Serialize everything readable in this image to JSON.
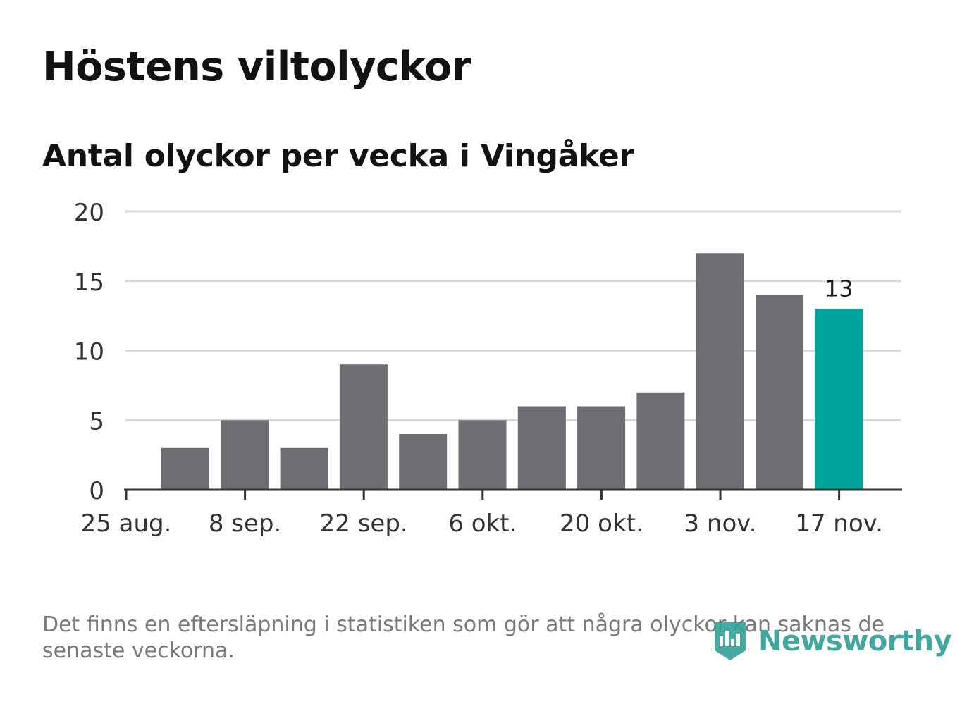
{
  "header": {
    "title": "Höstens viltolyckor",
    "subtitle": "Antal olyckor per vecka i Vingåker"
  },
  "chart_data": {
    "type": "bar",
    "title": "Höstens viltolyckor",
    "subtitle": "Antal olyckor per vecka i Vingåker",
    "xlabel": "",
    "ylabel": "",
    "ylim": [
      0,
      20
    ],
    "yticks": [
      "0",
      "5",
      "10",
      "15",
      "20"
    ],
    "xtick_labels": [
      "25 aug.",
      "8 sep.",
      "22 sep.",
      "6 okt.",
      "20 okt.",
      "3 nov.",
      "17 nov."
    ],
    "values": [
      3,
      5,
      3,
      9,
      4,
      5,
      6,
      6,
      7,
      17,
      14,
      13
    ],
    "highlight_index": 11,
    "highlight_label": "13",
    "grid": true,
    "colors": {
      "bar": "#6e6d72",
      "highlight": "#00a49a",
      "grid": "#d9d9d9",
      "axis": "#333333"
    }
  },
  "footer": {
    "note": "Det finns en eftersläpning i statistiken som gör att några olyckor kan saknas de senaste veckorna.",
    "brand": "Newsworthy",
    "brand_icon": "newsworthy-logo-icon",
    "brand_color": "#33a197"
  }
}
